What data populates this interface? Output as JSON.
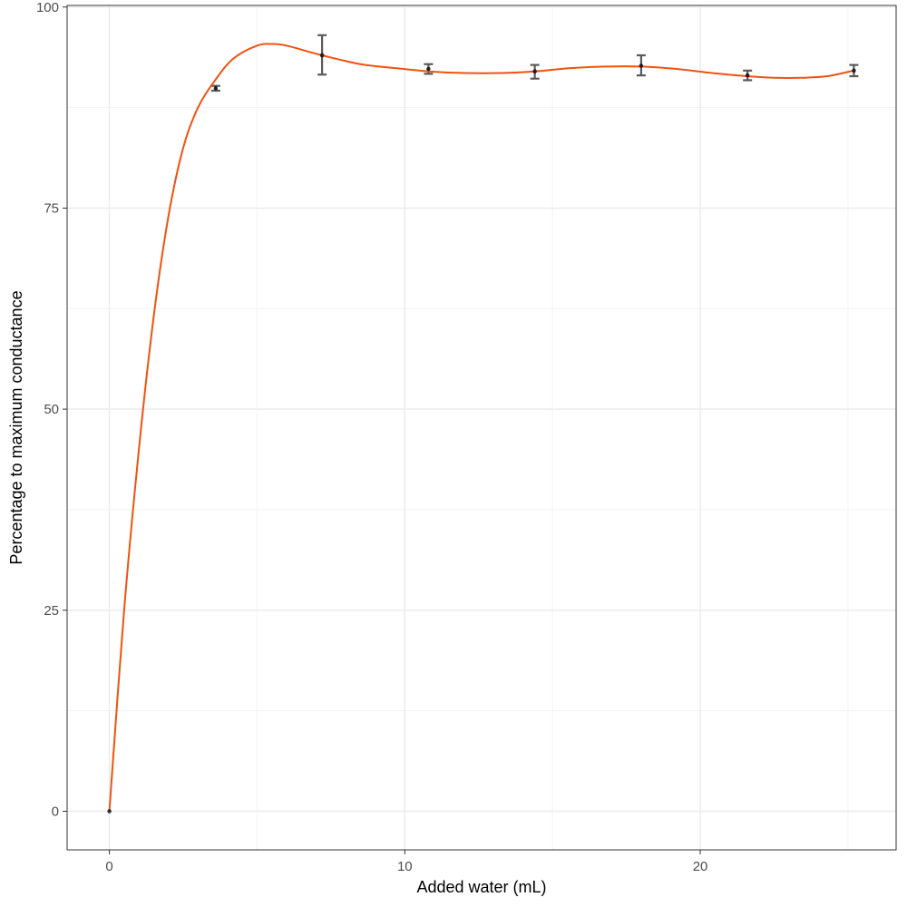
{
  "chart_data": {
    "type": "line",
    "title": "",
    "xlabel": "Added water (mL)",
    "ylabel": "Percentage to maximum conductance",
    "xlim": [
      -1.43,
      26.63
    ],
    "ylim": [
      -4.8,
      100.2
    ],
    "x_ticks": [
      0,
      10,
      20
    ],
    "x_tick_labels": [
      "0",
      "10",
      "20"
    ],
    "y_ticks": [
      0,
      25,
      50,
      75,
      100
    ],
    "y_tick_labels": [
      "0",
      "25",
      "50",
      "75",
      "100"
    ],
    "grid": true,
    "legend": "none",
    "series": [
      {
        "type": "point_errorbar",
        "x": [
          0,
          3.6,
          7.2,
          10.8,
          14.4,
          18.0,
          21.6,
          25.2
        ],
        "y": [
          0,
          89.9,
          94.0,
          92.3,
          92.0,
          92.7,
          91.5,
          92.1
        ],
        "err_low": [
          0,
          89.6,
          91.6,
          91.7,
          91.1,
          91.5,
          90.9,
          91.4
        ],
        "err_high": [
          0,
          90.2,
          96.5,
          92.9,
          92.8,
          94.0,
          92.1,
          92.8
        ]
      },
      {
        "type": "smooth_line",
        "x": [
          0,
          0.5,
          1.0,
          1.5,
          2.0,
          2.5,
          3.0,
          3.6,
          4.2,
          5.0,
          5.5,
          6.0,
          7.2,
          8.5,
          9.7,
          10.8,
          12.0,
          13.3,
          14.4,
          15.6,
          16.8,
          18.0,
          19.2,
          20.4,
          21.6,
          22.5,
          23.4,
          24.3,
          25.2
        ],
        "y": [
          0,
          25.0,
          45.0,
          61.5,
          74.0,
          82.5,
          87.5,
          91.0,
          93.6,
          95.2,
          95.4,
          95.2,
          94.0,
          92.9,
          92.4,
          92.0,
          91.8,
          91.8,
          92.0,
          92.4,
          92.6,
          92.6,
          92.3,
          91.8,
          91.4,
          91.2,
          91.2,
          91.4,
          92.1
        ]
      }
    ],
    "colors": {
      "line": "#f0520f",
      "points": "#000000",
      "errorbars": "#5a5a5a",
      "panel_border": "#333333",
      "grid_major": "#ebebeb",
      "grid_minor": "#f3f3f3"
    }
  }
}
